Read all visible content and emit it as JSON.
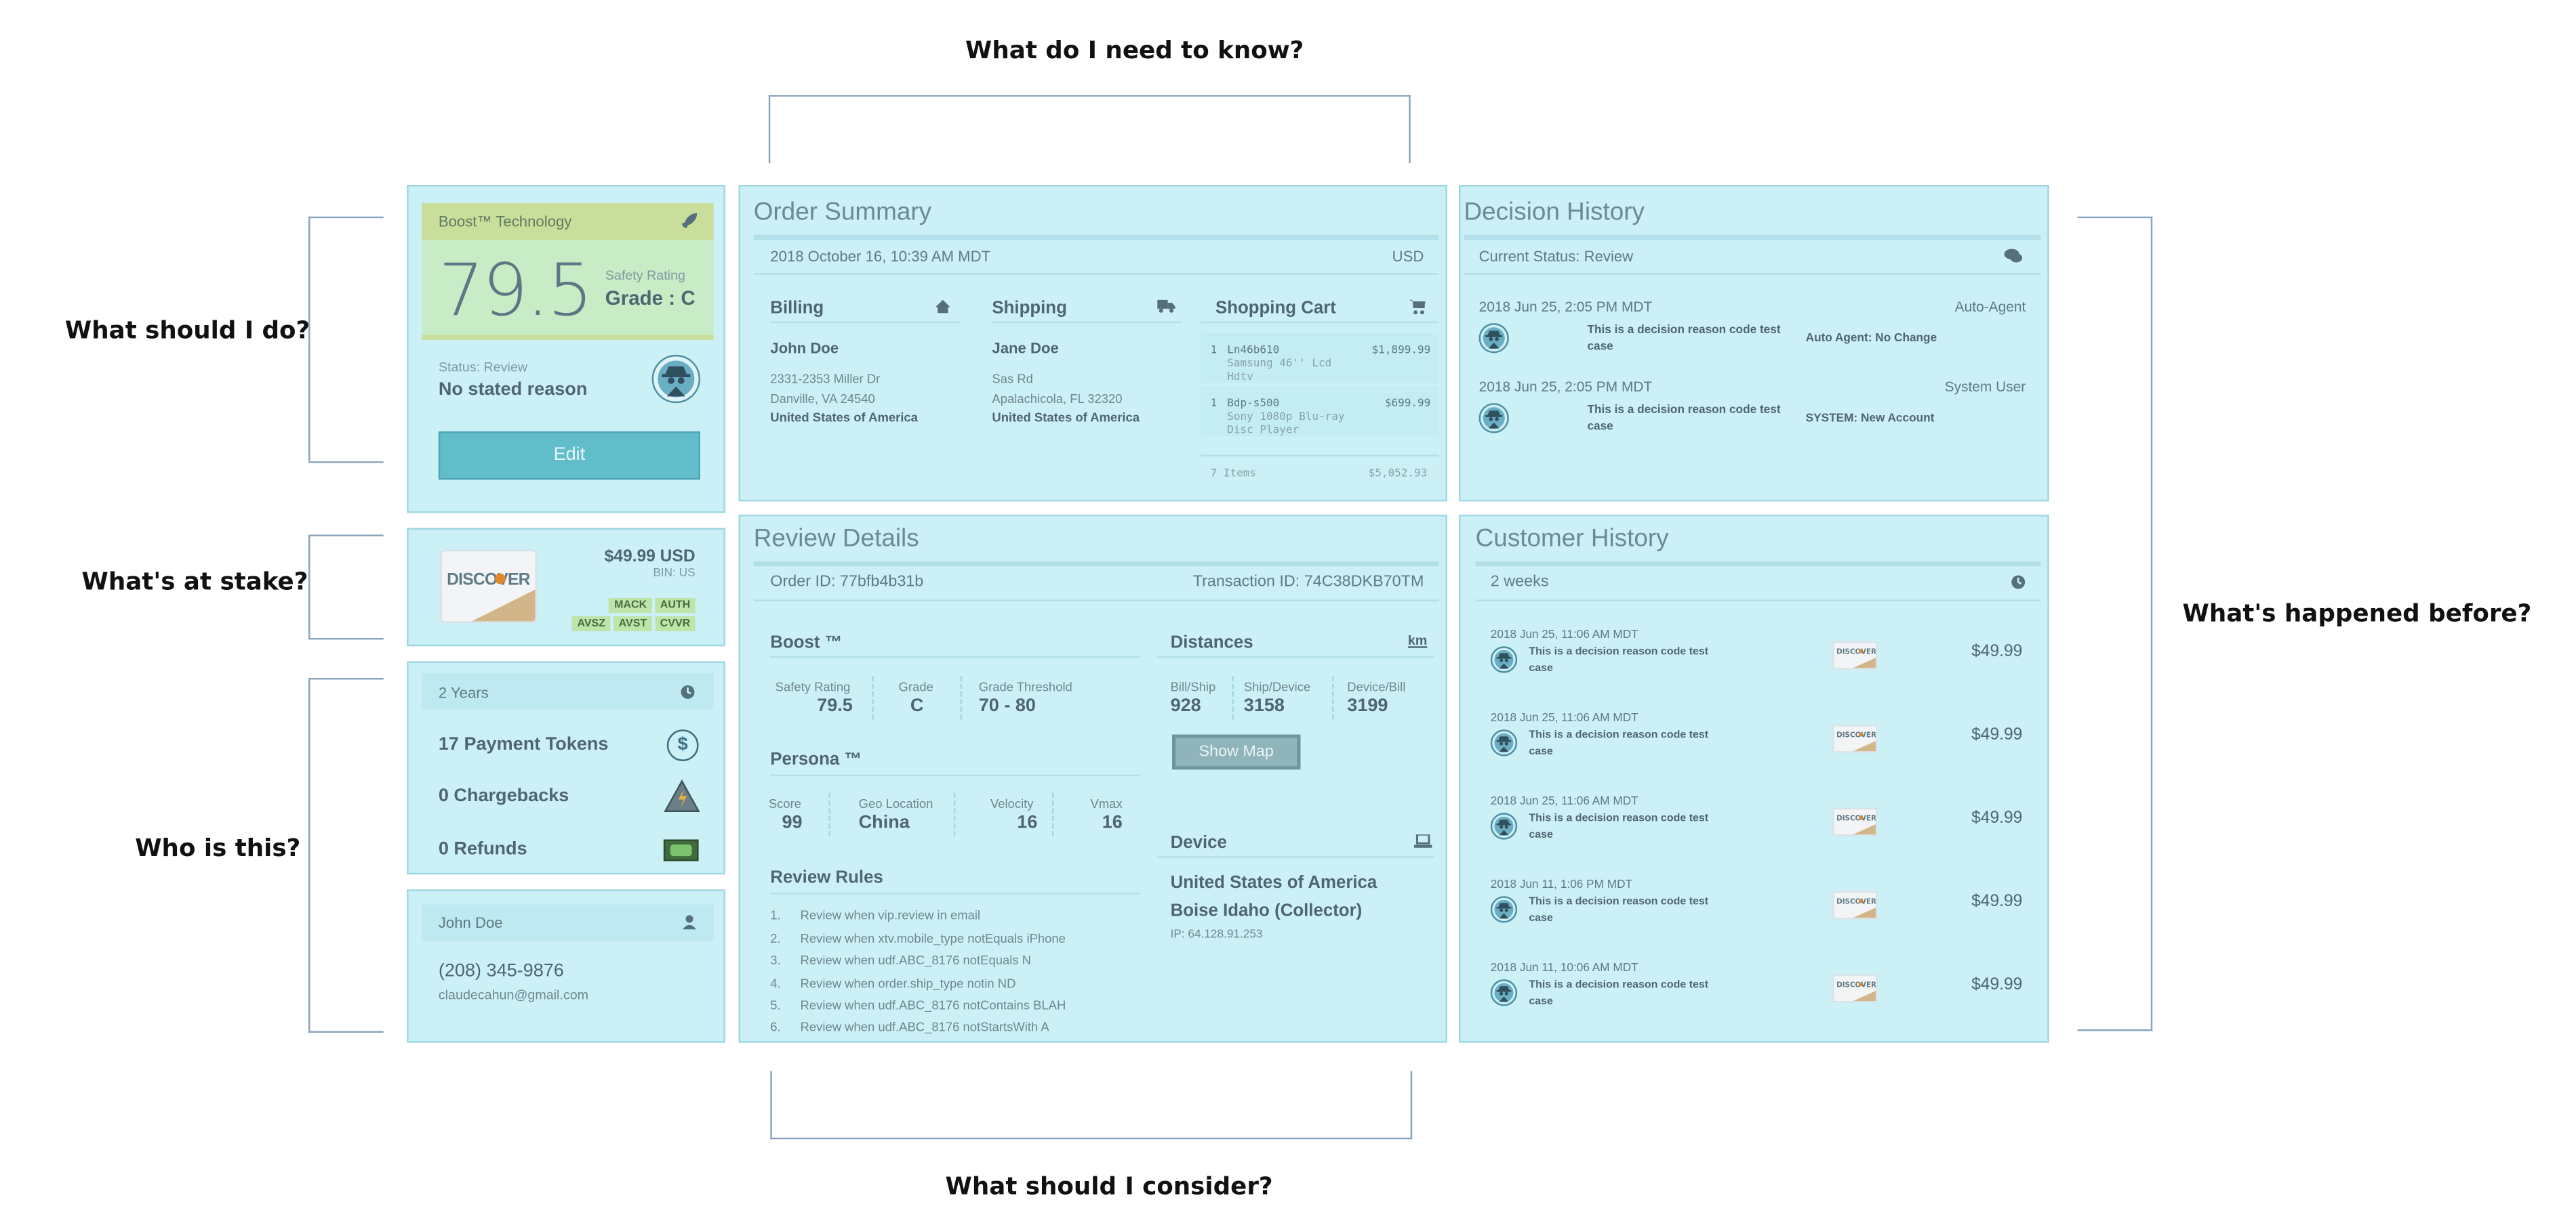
{
  "questions": {
    "need_to_know": "What do I need to know?",
    "should_do": "What should I do?",
    "at_stake": "What's at stake?",
    "who_is": "Who is this?",
    "happened_before": "What's happened before?",
    "consider": "What should I consider?"
  },
  "boost": {
    "brand": "Boost™ Technology",
    "score": "79.5",
    "safety_label": "Safety Rating",
    "grade": "Grade : C",
    "status_label": "Status: Review",
    "reason": "No stated reason",
    "edit_label": "Edit"
  },
  "stake": {
    "amount": "$49.99 USD",
    "bin": "BIN: US",
    "tags_row1": [
      "MACK",
      "AUTH"
    ],
    "tags_row2": [
      "AVSZ",
      "AVST",
      "CVVR"
    ],
    "card_brand": "DISCOVER"
  },
  "identity": {
    "period": "2 Years",
    "stats": [
      {
        "label": "17 Payment Tokens",
        "icon": "dollar-icon"
      },
      {
        "label": "0 Chargebacks",
        "icon": "warning-icon"
      },
      {
        "label": "0 Refunds",
        "icon": "cash-icon"
      }
    ]
  },
  "contact": {
    "name": "John Doe",
    "phone": "(208) 345-9876",
    "email": "claudecahun@gmail.com"
  },
  "order": {
    "title": "Order Summary",
    "datetime": "2018 October 16, 10:39 AM MDT",
    "currency": "USD",
    "billing": {
      "title": "Billing",
      "name": "John Doe",
      "line1": "2331-2353 Miller Dr",
      "line2": "Danville, VA 24540",
      "country": "United States of America"
    },
    "shipping": {
      "title": "Shipping",
      "name": "Jane Doe",
      "line1": "Sas Rd",
      "line2": "Apalachicola, FL 32320",
      "country": "United States of America"
    },
    "cart": {
      "title": "Shopping Cart",
      "items": [
        {
          "qty": "1",
          "sku": "Ln46b610",
          "desc1": "Samsung 46'' Lcd",
          "desc2": "Hdtv",
          "price": "$1,899.99"
        },
        {
          "qty": "1",
          "sku": "Bdp-s500",
          "desc1": "Sony 1080p Blu-ray",
          "desc2": "Disc Player",
          "price": "$699.99"
        }
      ],
      "count": "7 Items",
      "total": "$5,052.93"
    }
  },
  "decision": {
    "title": "Decision History",
    "status": "Current Status: Review",
    "entries": [
      {
        "date": "2018 Jun 25, 2:05 PM MDT",
        "agent": "Auto-Agent",
        "reason": "This is a decision reason code test case",
        "note": "Auto Agent: No Change"
      },
      {
        "date": "2018 Jun 25, 2:05 PM MDT",
        "agent": "System User",
        "reason": "This is a decision reason code test case",
        "note": "SYSTEM: New Account"
      }
    ]
  },
  "review": {
    "title": "Review Details",
    "order_id": "Order ID: 77bfb4b31b",
    "transaction_id": "Transaction ID: 74C38DKB70TM",
    "boost_title": "Boost ™",
    "boost_cols": [
      {
        "label": "Safety Rating",
        "value": "79.5"
      },
      {
        "label": "Grade",
        "value": "C"
      },
      {
        "label": "Grade Threshold",
        "value": "70 - 80"
      }
    ],
    "persona_title": "Persona ™",
    "persona_cols": [
      {
        "label": "Score",
        "value": "99"
      },
      {
        "label": "Geo Location",
        "value": "China"
      },
      {
        "label": "Velocity",
        "value": "16"
      },
      {
        "label": "Vmax",
        "value": "16"
      }
    ],
    "rules_title": "Review Rules",
    "rules": [
      "Review when vip.review in email",
      "Review when xtv.mobile_type notEquals iPhone",
      "Review when udf.ABC_8176 notEquals N",
      "Review when order.ship_type notin ND",
      "Review when udf.ABC_8176 notContains BLAH",
      "Review when udf.ABC_8176 notStartsWith A"
    ],
    "distances_title": "Distances",
    "distance_unit": "km",
    "distances": [
      {
        "label": "Bill/Ship",
        "value": "928"
      },
      {
        "label": "Ship/Device",
        "value": "3158"
      },
      {
        "label": "Device/Bill",
        "value": "3199"
      }
    ],
    "show_map": "Show Map",
    "device_title": "Device",
    "device_country": "United States of America",
    "device_city": "Boise Idaho (Collector)",
    "device_ip": "IP: 64.128.91.253"
  },
  "customer": {
    "title": "Customer History",
    "period": "2 weeks",
    "entries": [
      {
        "date": "2018 Jun 25, 11:06 AM MDT",
        "reason": "This is a decision reason code test case",
        "amount": "$49.99"
      },
      {
        "date": "2018 Jun 25, 11:06 AM MDT",
        "reason": "This is a decision reason code test case",
        "amount": "$49.99"
      },
      {
        "date": "2018 Jun 25, 11:06 AM MDT",
        "reason": "This is a decision reason code test case",
        "amount": "$49.99"
      },
      {
        "date": "2018 Jun 11, 1:06 PM MDT",
        "reason": "This is a decision reason code test case",
        "amount": "$49.99"
      },
      {
        "date": "2018 Jun 11, 10:06 AM MDT",
        "reason": "This is a decision reason code test case",
        "amount": "$49.99"
      }
    ]
  },
  "colors": {
    "panel": "#cbf0f6",
    "boost_header": "#c9de9a",
    "boost_score_bg": "#c8ecc5",
    "edit_button": "#62bdcb",
    "tag_green": "#bde4a9"
  }
}
